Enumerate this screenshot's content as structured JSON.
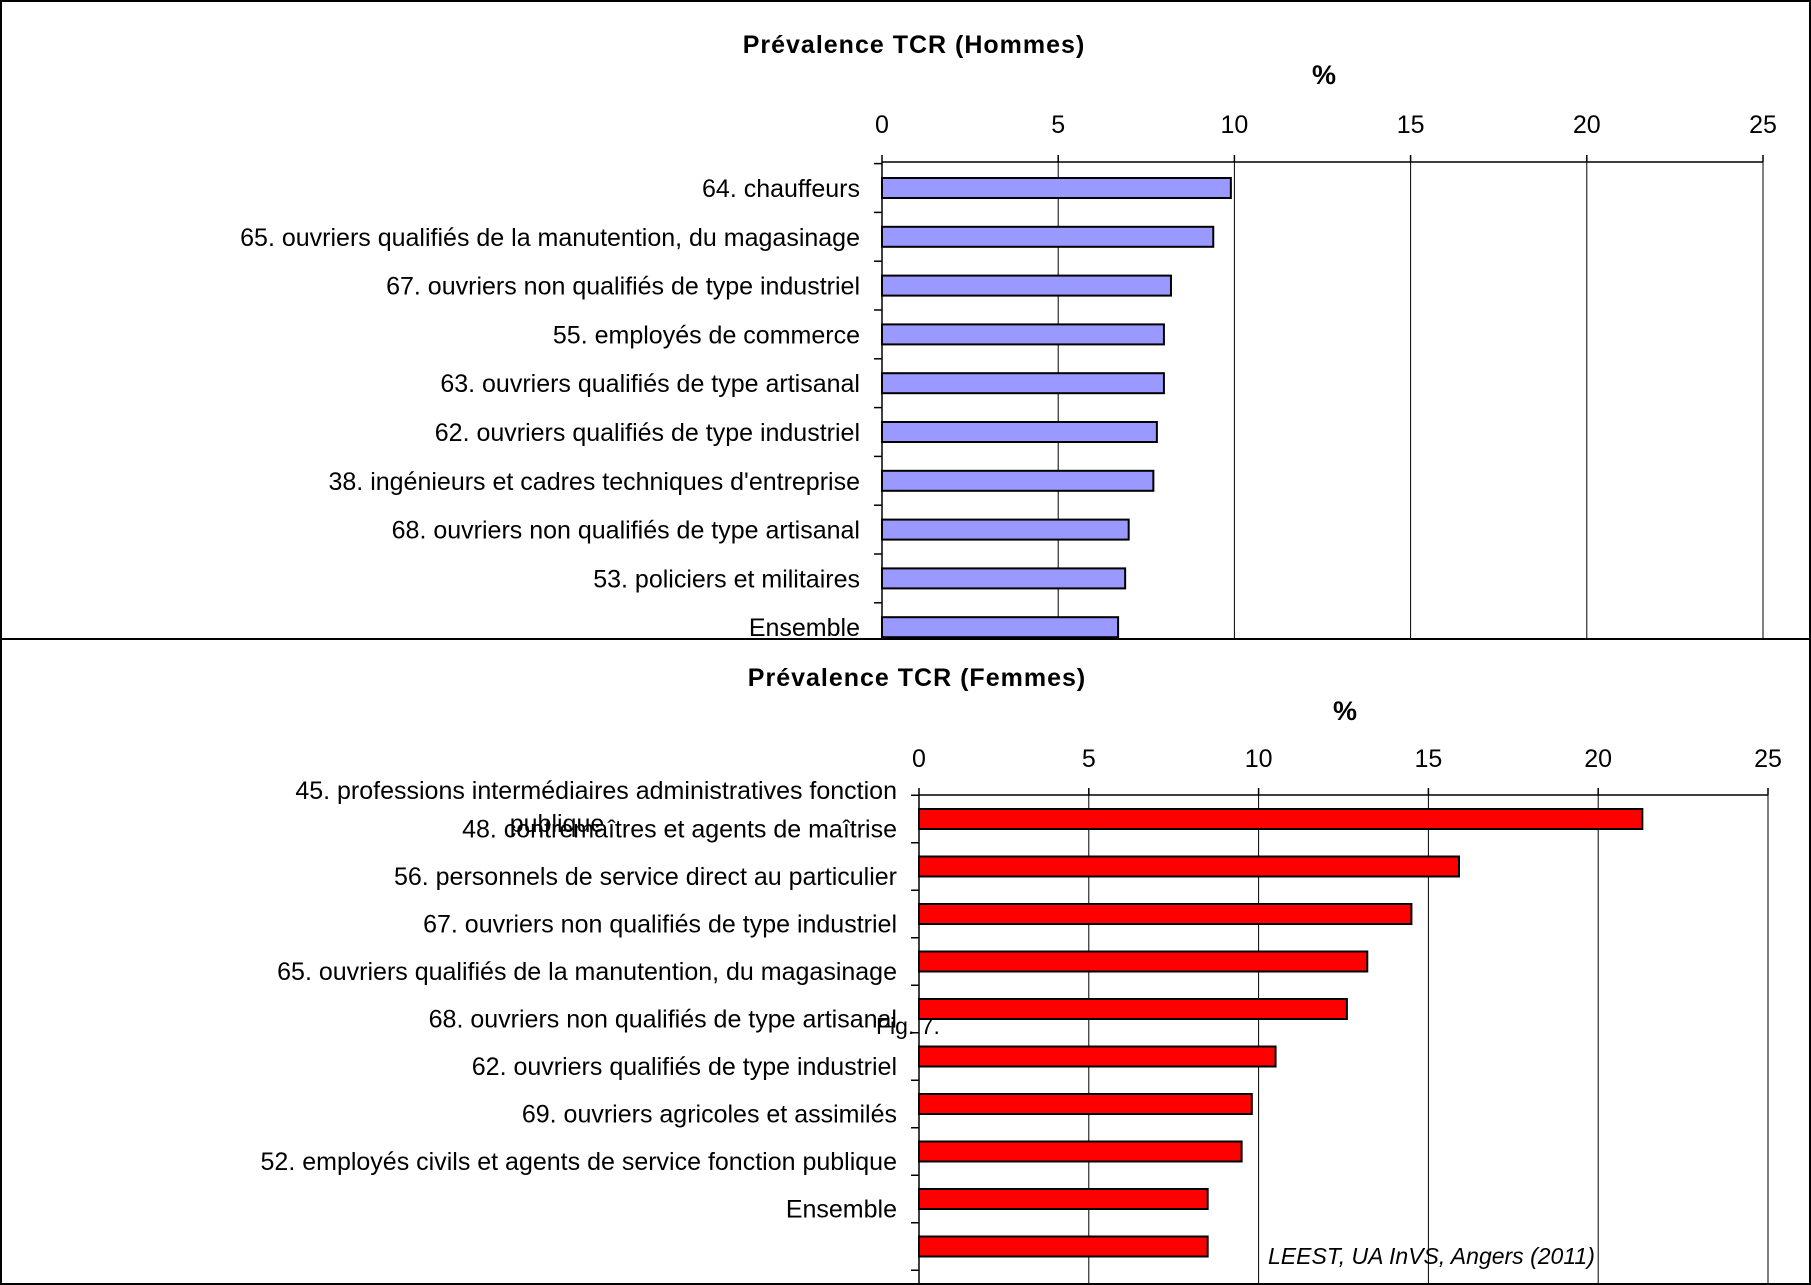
{
  "chart_data": [
    {
      "type": "bar",
      "orientation": "horizontal",
      "title": "Prévalence TCR (Hommes)",
      "xlabel": "%",
      "xlim": [
        0,
        25
      ],
      "ticks": [
        "0",
        "5",
        "10",
        "15",
        "20",
        "25"
      ],
      "grid": true,
      "bar_color": "#9999FF",
      "categories": [
        "64. chauffeurs",
        "65. ouvriers qualifiés de la manutention, du magasinage",
        "67. ouvriers non qualifiés de type industriel",
        "55. employés de commerce",
        "63. ouvriers qualifiés de type artisanal",
        "62. ouvriers qualifiés de type industriel",
        "38. ingénieurs et cadres techniques d'entreprise",
        "68. ouvriers non qualifiés de type artisanal",
        "53. policiers et militaires",
        "Ensemble"
      ],
      "values": [
        9.9,
        9.4,
        8.2,
        8.0,
        8.0,
        7.8,
        7.7,
        7.0,
        6.9,
        6.7
      ]
    },
    {
      "type": "bar",
      "orientation": "horizontal",
      "title": "Prévalence TCR (Femmes)",
      "xlabel": "%",
      "xlim": [
        0,
        25
      ],
      "ticks": [
        "0",
        "5",
        "10",
        "15",
        "20",
        "25"
      ],
      "grid": true,
      "bar_color": "#FF0000",
      "categories": [
        [
          "45. professions intermédiaires administratives fonction",
          "publique"
        ],
        "48. contremaîtres et agents de maîtrise",
        "56. personnels de service direct au particulier",
        "67. ouvriers non qualifiés de type industriel",
        "65. ouvriers qualifiés de la manutention, du magasinage",
        "68. ouvriers non qualifiés de type artisanal",
        "62. ouvriers qualifiés de type industriel",
        "69. ouvriers agricoles et assimilés",
        "52. employés civils et agents de service fonction publique",
        "Ensemble"
      ],
      "values": [
        21.3,
        15.9,
        14.5,
        13.2,
        12.6,
        10.5,
        9.8,
        9.5,
        8.5,
        8.5
      ]
    }
  ],
  "annotations": {
    "figure_label": "Fig. 7.",
    "source": "LEEST, UA InVS, Angers (2011)"
  }
}
